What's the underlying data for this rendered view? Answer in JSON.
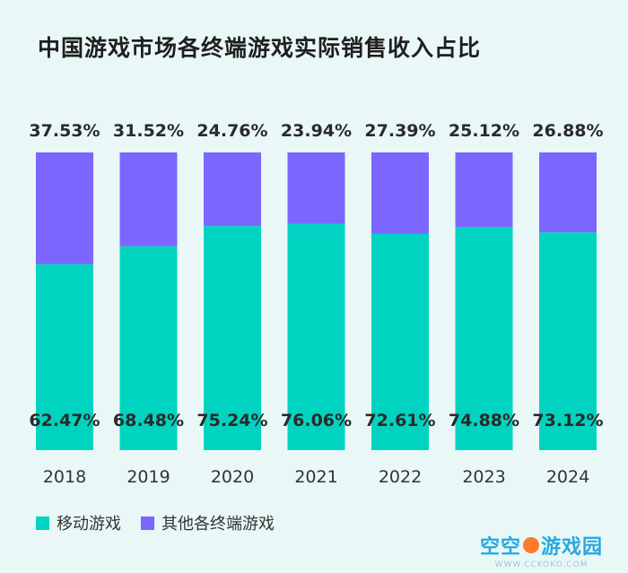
{
  "chart_data": {
    "type": "bar",
    "stacked": true,
    "title": "中国游戏市场各终端游戏实际销售收入占比",
    "categories": [
      "2018",
      "2019",
      "2020",
      "2021",
      "2022",
      "2023",
      "2024"
    ],
    "series": [
      {
        "name": "移动游戏",
        "color": "#00d4c0",
        "values": [
          62.47,
          68.48,
          75.24,
          76.06,
          72.61,
          74.88,
          73.12
        ],
        "labels": [
          "62.47%",
          "68.48%",
          "75.24%",
          "76.06%",
          "72.61%",
          "74.88%",
          "73.12%"
        ]
      },
      {
        "name": "其他各终端游戏",
        "color": "#7b66ff",
        "values": [
          37.53,
          31.52,
          24.76,
          23.94,
          27.39,
          25.12,
          26.88
        ],
        "labels": [
          "37.53%",
          "31.52%",
          "24.76%",
          "23.94%",
          "27.39%",
          "25.12%",
          "26.88%"
        ]
      }
    ],
    "ylim": [
      0,
      100
    ],
    "xlabel": "",
    "ylabel": "",
    "legend": "bottom-left"
  },
  "legend": {
    "mobile": "移动游戏",
    "other": "其他各终端游戏"
  },
  "watermark": {
    "main_a": "空空",
    "main_b": "游戏园",
    "sub": "WWW.CCKOKO.COM"
  }
}
